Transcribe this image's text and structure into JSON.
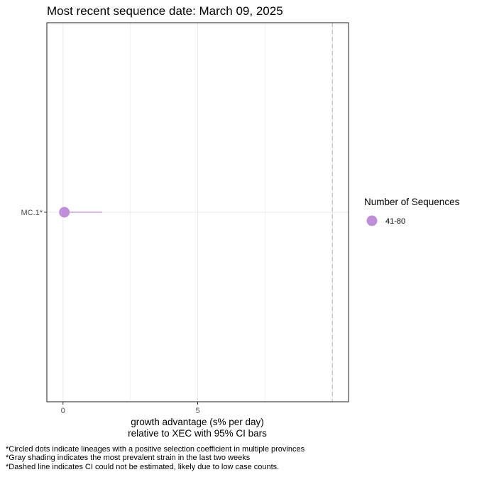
{
  "chart_data": {
    "type": "scatter",
    "title": "Most recent sequence date: March 09, 2025",
    "xlabel_line1": "growth advantage (s% per day)",
    "xlabel_line2": "relative to  XEC  with 95% CI bars",
    "ylabel": "",
    "xlim": [
      -0.6,
      10.6
    ],
    "xticks": [
      0,
      5
    ],
    "x_gridlines": [
      0,
      2.5,
      5,
      7.5,
      10
    ],
    "categories": [
      "MC.1*"
    ],
    "points": [
      {
        "label": "MC.1*",
        "x": 0.05,
        "ci_low": 0.05,
        "ci_high": 1.45,
        "color": "#bf8fd9"
      }
    ],
    "dashed_line_x": 10.0,
    "grid": true,
    "legend": {
      "title": "Number of Sequences",
      "position": "right",
      "items": [
        {
          "label": "41-80",
          "color": "#bf8fd9"
        }
      ]
    },
    "footnotes": [
      "*Circled dots indicate lineages with a positive selection coefficient in multiple provinces",
      "*Gray shading indicates the most prevalent strain in the last two weeks",
      "*Dashed line indicates CI could not be estimated, likely due to low case counts."
    ]
  }
}
